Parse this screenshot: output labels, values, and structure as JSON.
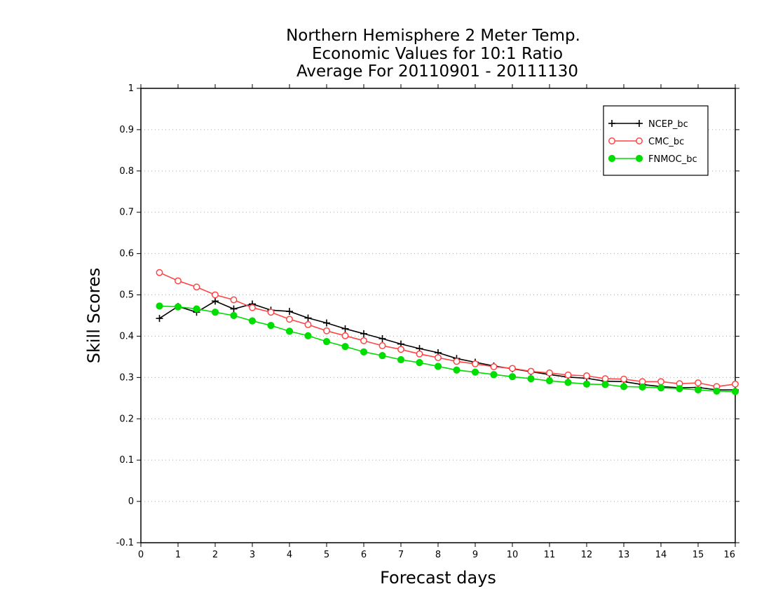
{
  "chart_data": {
    "type": "line",
    "title": [
      "Northern Hemisphere 2 Meter Temp.",
      "Economic Values for 10:1 Ratio",
      "Average For 20110901 - 20111130"
    ],
    "xlabel": "Forecast days",
    "ylabel": "Skill Scores",
    "xlim": [
      0,
      16
    ],
    "ylim": [
      -0.1,
      1
    ],
    "xticks": [
      0,
      1,
      2,
      3,
      4,
      5,
      6,
      7,
      8,
      9,
      10,
      11,
      12,
      13,
      14,
      15,
      16
    ],
    "yticks": [
      -0.1,
      0,
      0.1,
      0.2,
      0.3,
      0.4,
      0.5,
      0.6,
      0.7,
      0.8,
      0.9,
      1
    ],
    "ytick_labels": [
      "-0.1",
      "0",
      "0.1",
      "0.2",
      "0.3",
      "0.4",
      "0.5",
      "0.6",
      "0.7",
      "0.8",
      "0.9",
      "1"
    ],
    "grid": "horizontal dotted",
    "legend_position": "top-right",
    "x": [
      0.5,
      1.0,
      1.5,
      2.0,
      2.5,
      3.0,
      3.5,
      4.0,
      4.5,
      5.0,
      5.5,
      6.0,
      6.5,
      7.0,
      7.5,
      8.0,
      8.5,
      9.0,
      9.5,
      10.0,
      10.5,
      11.0,
      11.5,
      12.0,
      12.5,
      13.0,
      13.5,
      14.0,
      14.5,
      15.0,
      15.5,
      16.0
    ],
    "series": [
      {
        "name": "NCEP_bc",
        "color": "#000000",
        "marker": "plus",
        "values": [
          0.443,
          0.472,
          0.458,
          0.485,
          0.466,
          0.478,
          0.463,
          0.46,
          0.444,
          0.432,
          0.418,
          0.406,
          0.394,
          0.381,
          0.37,
          0.36,
          0.346,
          0.337,
          0.328,
          0.321,
          0.314,
          0.307,
          0.301,
          0.298,
          0.291,
          0.29,
          0.283,
          0.278,
          0.275,
          0.276,
          0.27,
          0.27
        ]
      },
      {
        "name": "CMC_bc",
        "color": "#ff4444",
        "marker": "open-circle",
        "values": [
          0.554,
          0.534,
          0.519,
          0.5,
          0.488,
          0.469,
          0.458,
          0.441,
          0.428,
          0.413,
          0.401,
          0.389,
          0.377,
          0.368,
          0.357,
          0.348,
          0.339,
          0.333,
          0.326,
          0.322,
          0.315,
          0.311,
          0.306,
          0.304,
          0.297,
          0.296,
          0.29,
          0.29,
          0.285,
          0.287,
          0.278,
          0.284
        ]
      },
      {
        "name": "FNMOC_bc",
        "color": "#00dd00",
        "marker": "filled-circle",
        "values": [
          0.473,
          0.471,
          0.466,
          0.458,
          0.45,
          0.437,
          0.426,
          0.412,
          0.401,
          0.387,
          0.375,
          0.362,
          0.353,
          0.343,
          0.336,
          0.327,
          0.318,
          0.313,
          0.307,
          0.302,
          0.297,
          0.292,
          0.288,
          0.284,
          0.283,
          0.278,
          0.277,
          0.275,
          0.273,
          0.27,
          0.267,
          0.266
        ]
      }
    ]
  }
}
